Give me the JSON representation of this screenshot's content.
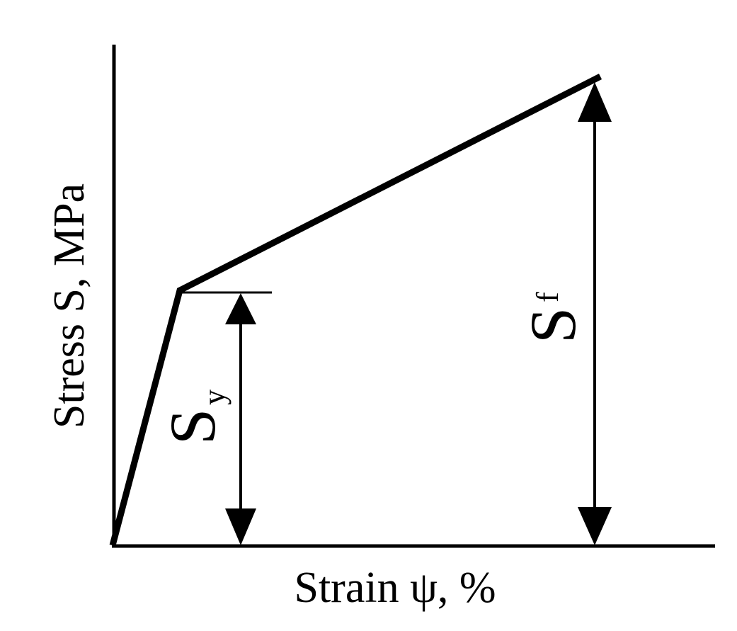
{
  "diagram": {
    "x_axis_label": "Strain ψ, %",
    "y_axis_label": "Stress S, MPa",
    "yield_label": {
      "symbol": "S",
      "subscript": "y"
    },
    "failure_label": {
      "symbol": "S",
      "subscript": "f"
    },
    "ink_color": "#000000",
    "background_color": "#ffffff"
  }
}
